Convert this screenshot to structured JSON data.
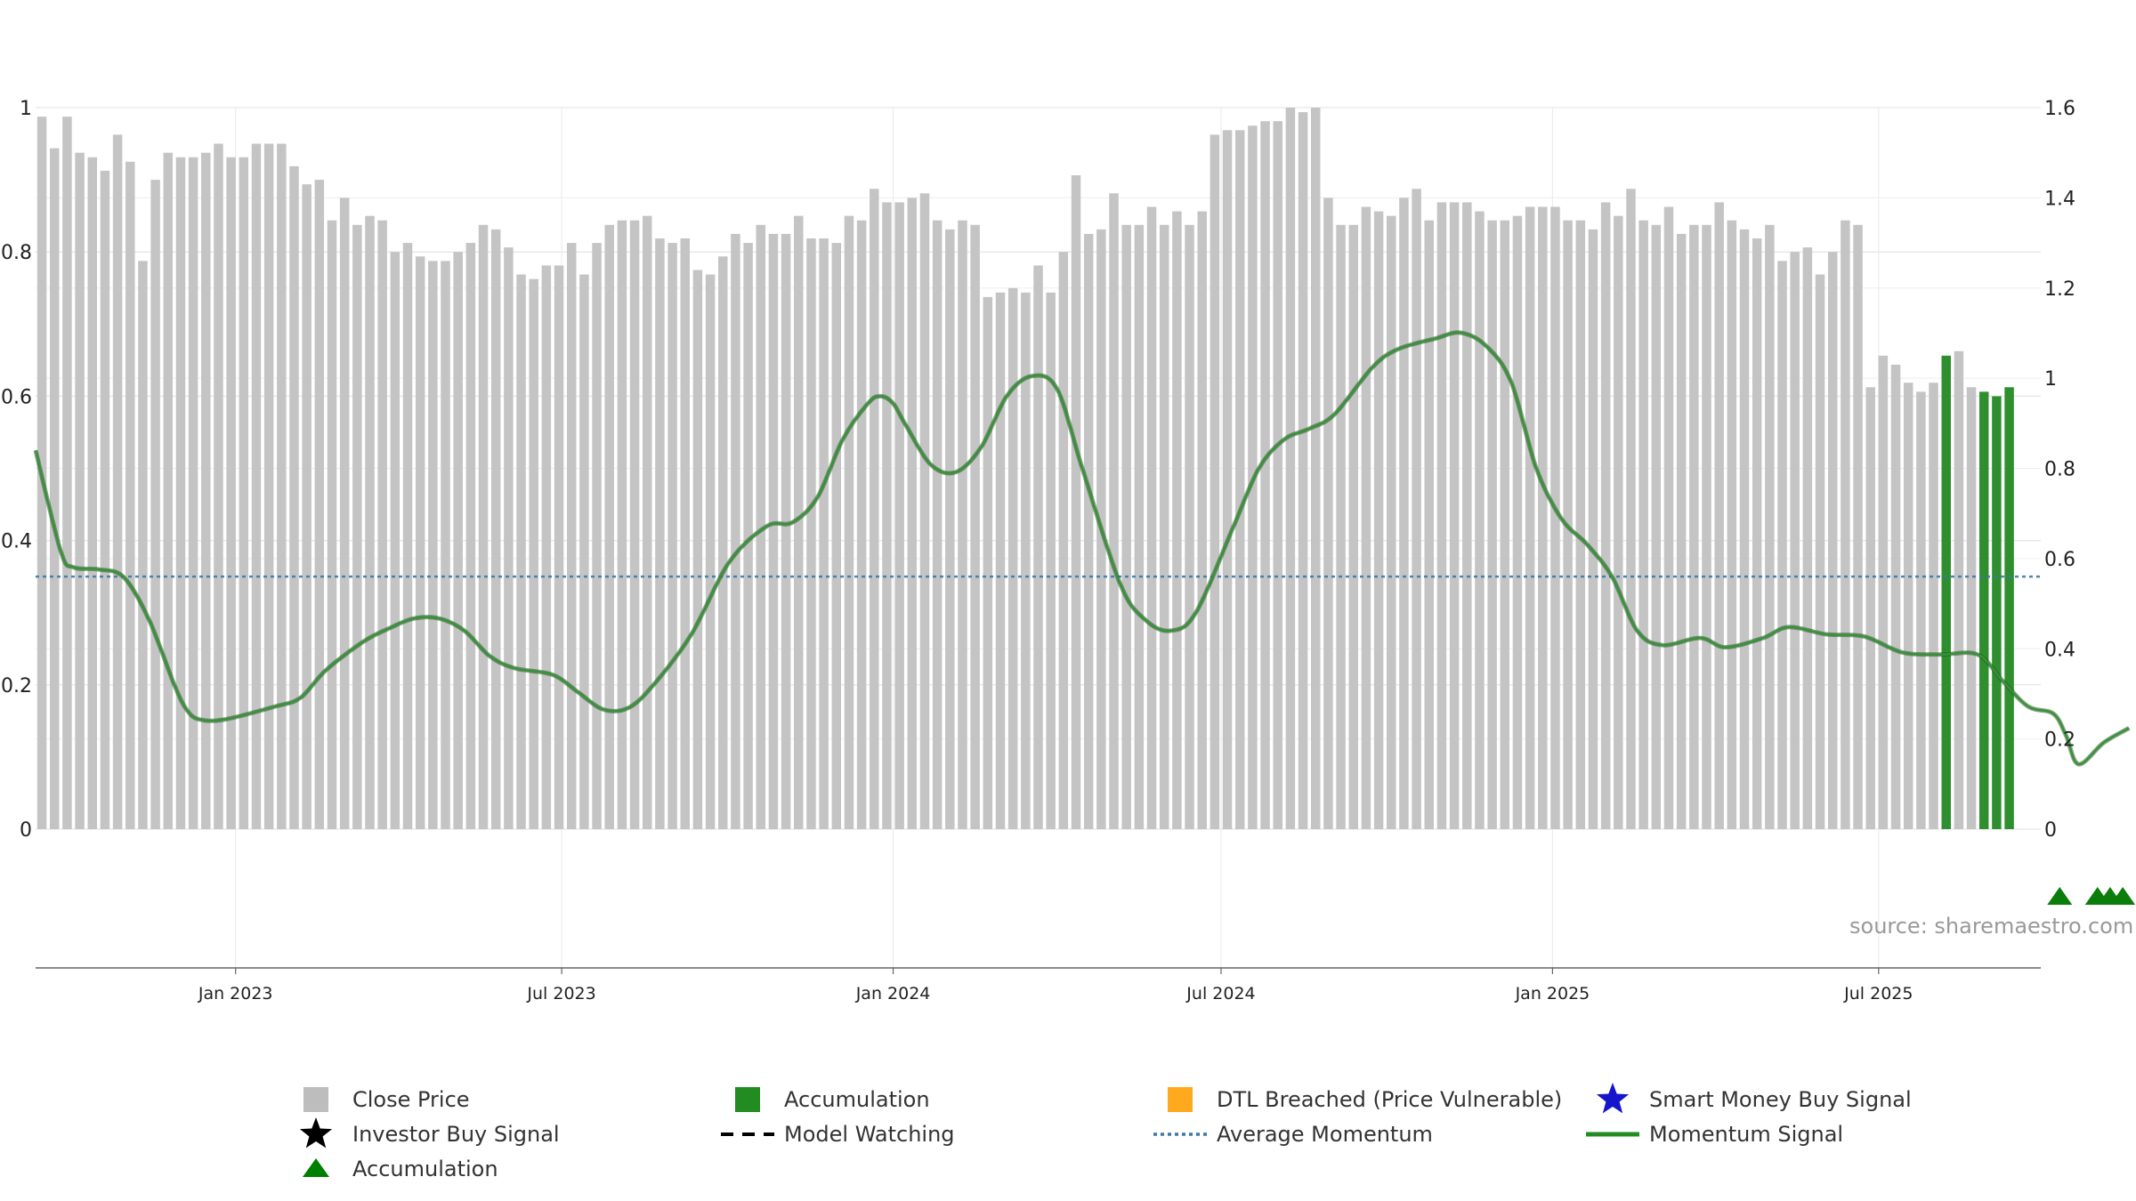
{
  "chart_data": {
    "type": "bar+line",
    "title": "",
    "source": "source: sharemaestro.com",
    "left_axis": {
      "ylim": [
        0,
        1
      ],
      "ticks": [
        "0",
        "0.2",
        "0.4",
        "0.6",
        "0.8",
        "1"
      ]
    },
    "right_axis": {
      "ylim": [
        0,
        1.6
      ],
      "ticks": [
        "0",
        "0.2",
        "0.4",
        "0.6",
        "0.8",
        "1",
        "1.2",
        "1.4",
        "1.6"
      ]
    },
    "x_axis": {
      "start": "2022-09-12",
      "end": "2025-09-22",
      "ticks": [
        {
          "date": "2023-01-01",
          "label": "Jan 2023"
        },
        {
          "date": "2023-07-01",
          "label": "Jul 2023"
        },
        {
          "date": "2024-01-01",
          "label": "Jan 2024"
        },
        {
          "date": "2024-07-01",
          "label": "Jul 2024"
        },
        {
          "date": "2025-01-01",
          "label": "Jan 2025"
        },
        {
          "date": "2025-07-01",
          "label": "Jul 2025"
        }
      ]
    },
    "close_price": {
      "name": "Close Price",
      "start": "2022-09-12",
      "interval_days": 7,
      "values": [
        1.58,
        1.51,
        1.58,
        1.5,
        1.49,
        1.46,
        1.54,
        1.48,
        1.26,
        1.44,
        1.5,
        1.49,
        1.49,
        1.5,
        1.52,
        1.49,
        1.49,
        1.52,
        1.52,
        1.52,
        1.47,
        1.43,
        1.44,
        1.35,
        1.4,
        1.34,
        1.36,
        1.35,
        1.28,
        1.3,
        1.27,
        1.26,
        1.26,
        1.28,
        1.3,
        1.34,
        1.33,
        1.29,
        1.23,
        1.22,
        1.25,
        1.25,
        1.3,
        1.23,
        1.3,
        1.34,
        1.35,
        1.35,
        1.36,
        1.31,
        1.3,
        1.31,
        1.24,
        1.23,
        1.27,
        1.32,
        1.3,
        1.34,
        1.32,
        1.32,
        1.36,
        1.31,
        1.31,
        1.3,
        1.36,
        1.35,
        1.42,
        1.39,
        1.39,
        1.4,
        1.41,
        1.35,
        1.33,
        1.35,
        1.34,
        1.18,
        1.19,
        1.2,
        1.19,
        1.25,
        1.19,
        1.28,
        1.45,
        1.32,
        1.33,
        1.41,
        1.34,
        1.34,
        1.38,
        1.34,
        1.37,
        1.34,
        1.37,
        1.54,
        1.55,
        1.55,
        1.56,
        1.57,
        1.57,
        1.6,
        1.59,
        1.6,
        1.4,
        1.34,
        1.34,
        1.38,
        1.37,
        1.36,
        1.4,
        1.42,
        1.35,
        1.39,
        1.39,
        1.39,
        1.37,
        1.35,
        1.35,
        1.36,
        1.38,
        1.38,
        1.38,
        1.35,
        1.35,
        1.33,
        1.39,
        1.36,
        1.42,
        1.35,
        1.34,
        1.38,
        1.32,
        1.34,
        1.34,
        1.39,
        1.35,
        1.33,
        1.31,
        1.34,
        1.26,
        1.28,
        1.29,
        1.23,
        1.28,
        1.35,
        1.34,
        0.98,
        1.05,
        1.03,
        0.99,
        0.97,
        0.99,
        1.05,
        1.06,
        0.98,
        0.97,
        0.96,
        0.98
      ],
      "accumulation_bar_indices": [
        151,
        154,
        155,
        156
      ]
    },
    "momentum_signal": {
      "name": "Momentum Signal",
      "points": [
        [
          "2022-09-12",
          0.525
        ],
        [
          "2022-09-26",
          0.385
        ],
        [
          "2022-10-03",
          0.363
        ],
        [
          "2022-10-17",
          0.36
        ],
        [
          "2022-10-31",
          0.349
        ],
        [
          "2022-11-14",
          0.29
        ],
        [
          "2022-11-28",
          0.2
        ],
        [
          "2022-12-05",
          0.165
        ],
        [
          "2022-12-12",
          0.152
        ],
        [
          "2022-12-26",
          0.152
        ],
        [
          "2023-01-23",
          0.17
        ],
        [
          "2023-02-06",
          0.182
        ],
        [
          "2023-02-20",
          0.22
        ],
        [
          "2023-03-13",
          0.26
        ],
        [
          "2023-03-27",
          0.278
        ],
        [
          "2023-04-10",
          0.292
        ],
        [
          "2023-04-24",
          0.292
        ],
        [
          "2023-05-08",
          0.275
        ],
        [
          "2023-05-22",
          0.24
        ],
        [
          "2023-06-05",
          0.223
        ],
        [
          "2023-06-26",
          0.214
        ],
        [
          "2023-07-10",
          0.19
        ],
        [
          "2023-07-24",
          0.166
        ],
        [
          "2023-08-07",
          0.168
        ],
        [
          "2023-08-21",
          0.2
        ],
        [
          "2023-09-11",
          0.27
        ],
        [
          "2023-10-02",
          0.37
        ],
        [
          "2023-10-23",
          0.42
        ],
        [
          "2023-11-06",
          0.425
        ],
        [
          "2023-11-20",
          0.46
        ],
        [
          "2023-12-04",
          0.54
        ],
        [
          "2023-12-18",
          0.59
        ],
        [
          "2023-12-25",
          0.6
        ],
        [
          "2024-01-01",
          0.59
        ],
        [
          "2024-01-08",
          0.56
        ],
        [
          "2024-01-22",
          0.505
        ],
        [
          "2024-02-05",
          0.495
        ],
        [
          "2024-02-19",
          0.53
        ],
        [
          "2024-03-04",
          0.6
        ],
        [
          "2024-03-18",
          0.628
        ],
        [
          "2024-04-01",
          0.61
        ],
        [
          "2024-04-15",
          0.5
        ],
        [
          "2024-05-06",
          0.34
        ],
        [
          "2024-05-20",
          0.29
        ],
        [
          "2024-06-03",
          0.275
        ],
        [
          "2024-06-17",
          0.3
        ],
        [
          "2024-07-08",
          0.42
        ],
        [
          "2024-07-22",
          0.5
        ],
        [
          "2024-08-05",
          0.54
        ],
        [
          "2024-08-19",
          0.555
        ],
        [
          "2024-09-02",
          0.575
        ],
        [
          "2024-09-23",
          0.64
        ],
        [
          "2024-10-07",
          0.665
        ],
        [
          "2024-10-28",
          0.68
        ],
        [
          "2024-11-11",
          0.688
        ],
        [
          "2024-11-25",
          0.67
        ],
        [
          "2024-12-09",
          0.62
        ],
        [
          "2024-12-23",
          0.5
        ],
        [
          "2025-01-06",
          0.43
        ],
        [
          "2025-01-20",
          0.395
        ],
        [
          "2025-02-03",
          0.35
        ],
        [
          "2025-02-17",
          0.275
        ],
        [
          "2025-03-03",
          0.255
        ],
        [
          "2025-03-24",
          0.265
        ],
        [
          "2025-04-07",
          0.252
        ],
        [
          "2025-04-28",
          0.265
        ],
        [
          "2025-05-12",
          0.28
        ],
        [
          "2025-06-02",
          0.27
        ],
        [
          "2025-06-23",
          0.267
        ],
        [
          "2025-07-14",
          0.245
        ],
        [
          "2025-08-04",
          0.242
        ],
        [
          "2025-08-25",
          0.242
        ],
        [
          "2025-09-08",
          0.205
        ],
        [
          "2025-09-22",
          0.17
        ],
        [
          "2025-10-06",
          0.16
        ],
        [
          "2025-10-13",
          0.13
        ],
        [
          "2025-10-20",
          0.09
        ],
        [
          "2025-11-03",
          0.12
        ],
        [
          "2025-11-17",
          0.14
        ]
      ]
    },
    "average_momentum": {
      "name": "Average Momentum",
      "value": 0.35
    },
    "accumulation_markers": {
      "name": "Accumulation",
      "dates": [
        "2025-10-06",
        "2025-10-27",
        "2025-11-03",
        "2025-11-10"
      ]
    },
    "legend": [
      {
        "key": "close",
        "label": "Close Price",
        "color": "#bdbdbd",
        "symbol": "square"
      },
      {
        "key": "accum_bar",
        "label": "Accumulation",
        "color": "#228b22",
        "symbol": "square"
      },
      {
        "key": "dtl",
        "label": "DTL Breached (Price Vulnerable)",
        "color": "#ffa91e",
        "symbol": "square"
      },
      {
        "key": "smart_money",
        "label": "Smart Money Buy Signal",
        "color": "#1515cc",
        "symbol": "star"
      },
      {
        "key": "investor_buy",
        "label": "Investor Buy Signal",
        "color": "#000000",
        "symbol": "star"
      },
      {
        "key": "model_watch",
        "label": "Model Watching",
        "color": "#000000",
        "symbol": "dash"
      },
      {
        "key": "avg_mom",
        "label": "Average Momentum",
        "color": "#3b78a8",
        "symbol": "dotted"
      },
      {
        "key": "mom",
        "label": "Momentum Signal",
        "color": "#228b22",
        "symbol": "line"
      },
      {
        "key": "accum_tri",
        "label": "Accumulation",
        "color": "#008000",
        "symbol": "triangle"
      }
    ],
    "legend_position": "bottom-center"
  },
  "colors": {
    "bar": "#c4c4c4",
    "accum_bar": "#2f8f2f",
    "momentum": "#3a8f3a",
    "average_momentum": "#3b78a8",
    "marker": "#0b7d0b",
    "grid": "#e8e8e8",
    "axis": "#666666"
  }
}
